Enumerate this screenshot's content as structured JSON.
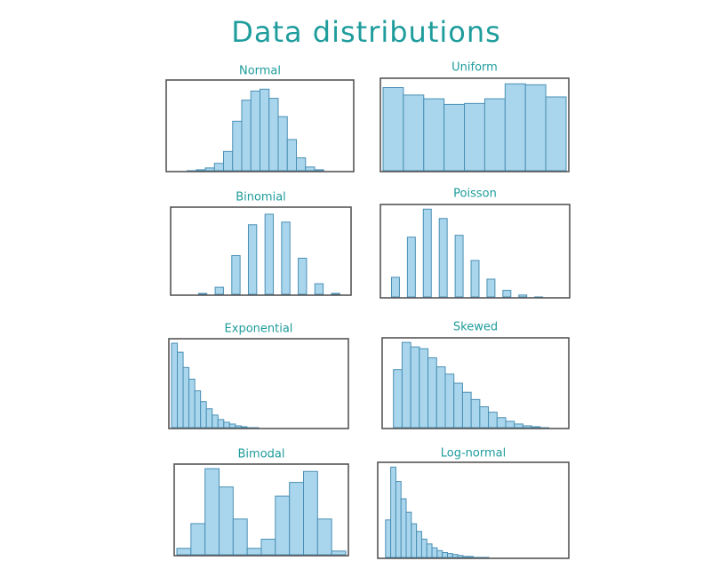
{
  "title": "Data distributions",
  "chart_data": [
    {
      "type": "bar",
      "title": "Normal",
      "ylim": [
        0,
        100
      ],
      "color": "#a9d6ec",
      "values": [
        0,
        0,
        1,
        2,
        4,
        9,
        22,
        55,
        78,
        88,
        90,
        80,
        60,
        35,
        15,
        5,
        2,
        0,
        0,
        0
      ]
    },
    {
      "type": "bar",
      "title": "Uniform",
      "ylim": [
        0,
        100
      ],
      "color": "#a9d6ec",
      "values": [
        90,
        82,
        78,
        72,
        73,
        78,
        94,
        93,
        80
      ]
    },
    {
      "type": "bar",
      "title": "Binomial",
      "ylim": [
        0,
        100
      ],
      "color": "#a9d6ec",
      "discrete": true,
      "values": [
        0,
        2,
        9,
        45,
        80,
        92,
        83,
        42,
        13,
        2
      ]
    },
    {
      "type": "bar",
      "title": "Poisson",
      "ylim": [
        0,
        100
      ],
      "color": "#a9d6ec",
      "discrete": true,
      "values": [
        22,
        65,
        95,
        85,
        67,
        40,
        20,
        8,
        3,
        1,
        0
      ]
    },
    {
      "type": "bar",
      "title": "Exponential",
      "ylim": [
        0,
        100
      ],
      "color": "#a9d6ec",
      "values": [
        95,
        85,
        68,
        55,
        42,
        30,
        22,
        15,
        10,
        7,
        5,
        3,
        2,
        1,
        1,
        0,
        0,
        0,
        0,
        0,
        0,
        0,
        0,
        0,
        0,
        0,
        0,
        0,
        0,
        0
      ]
    },
    {
      "type": "bar",
      "title": "Skewed",
      "ylim": [
        0,
        100
      ],
      "color": "#a9d6ec",
      "values": [
        0,
        65,
        95,
        90,
        88,
        78,
        68,
        60,
        50,
        40,
        32,
        24,
        18,
        12,
        8,
        5,
        3,
        2,
        1,
        0,
        0
      ]
    },
    {
      "type": "bar",
      "title": "Bimodal",
      "ylim": [
        0,
        100
      ],
      "color": "#a9d6ec",
      "values": [
        8,
        35,
        95,
        75,
        40,
        8,
        18,
        65,
        80,
        92,
        40,
        5
      ]
    },
    {
      "type": "bar",
      "title": "Log-normal",
      "ylim": [
        0,
        100
      ],
      "color": "#a9d6ec",
      "values": [
        0,
        40,
        95,
        80,
        62,
        48,
        36,
        28,
        20,
        15,
        11,
        8,
        6,
        5,
        4,
        3,
        2,
        2,
        1,
        1,
        1,
        0,
        0,
        0,
        0,
        0,
        0,
        0,
        0,
        0,
        0,
        0,
        0,
        0,
        0,
        0
      ]
    }
  ]
}
